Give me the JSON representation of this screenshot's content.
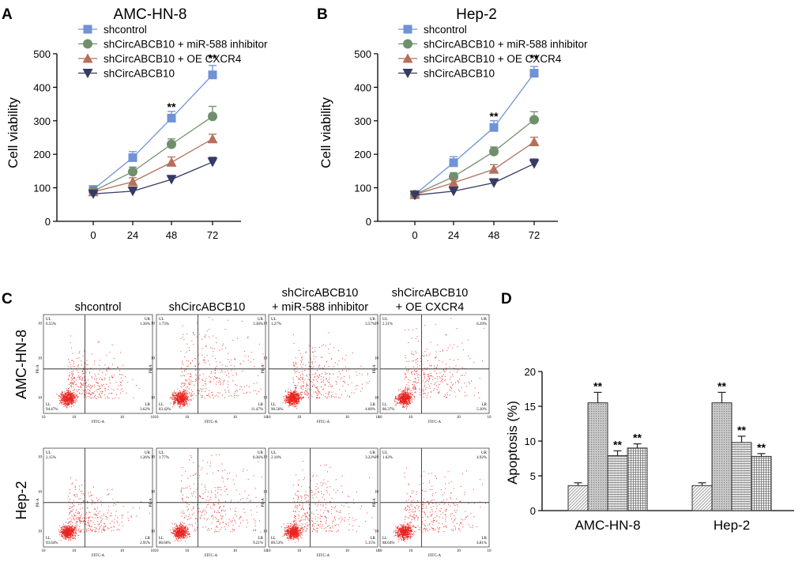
{
  "colors": {
    "shcontrol": "#7092d6",
    "inhibitor": "#6f8f6d",
    "oe": "#b5705c",
    "shCirc": "#363b63",
    "dots": "#e8221d"
  },
  "line_legend": [
    {
      "key": "shcontrol",
      "label": "shcontrol",
      "marker": "square-marker-icon"
    },
    {
      "key": "inhibitor",
      "label": "shCircABCB10 + miR-588 inhibitor",
      "marker": "circle-marker-icon"
    },
    {
      "key": "oe",
      "label": "shCircABCB10 +  OE CXCR4",
      "marker": "triangle-marker-icon"
    },
    {
      "key": "shCirc",
      "label": "shCircABCB10",
      "marker": "down-triangle-marker-icon"
    }
  ],
  "flow": {
    "columns": [
      "shcontrol",
      "shCircABCB10",
      "shCircABCB10",
      "+ miR-588 inhibitor",
      "shCircABCB10",
      "+ OE CXCR4"
    ],
    "rows": [
      "AMC-HN-8",
      "Hep-2"
    ],
    "axis_x": "FITC-A",
    "axis_y": "PE-A",
    "quad_labels": [
      "UL",
      "UR",
      "LL",
      "LR"
    ],
    "percents": [
      [
        "0.55%",
        "1.36%",
        "94.47%",
        "3.62%"
      ],
      [
        "1.73%",
        "3.38%",
        "83.42%",
        "11.47%"
      ],
      [
        "1.27%",
        "3.57%",
        "90.56%",
        "4.60%"
      ],
      [
        "2.31%",
        "6.29%",
        "86.37%",
        "5.30%"
      ],
      [
        "2.15%",
        "1.26%",
        "93.64%",
        "2.95%"
      ],
      [
        "1.77%",
        "8.36%",
        "80.66%",
        "9.21%"
      ],
      [
        "2.10%",
        "3.22%",
        "89.53%",
        "5.15%"
      ],
      [
        "1.63%",
        "4.92%",
        "88.64%",
        "4.81%"
      ]
    ],
    "tick": "10"
  },
  "chart_data": [
    {
      "panel": "A",
      "type": "line",
      "title": "AMC-HN-8",
      "xlabel": "",
      "ylabel": "Cell viability",
      "x": [
        0,
        24,
        48,
        72
      ],
      "ylim": [
        0,
        500
      ],
      "yticks": [
        0,
        100,
        200,
        300,
        400,
        500
      ],
      "series": [
        {
          "name": "shcontrol",
          "key": "shcontrol",
          "marker": "square",
          "values": [
            95,
            190,
            308,
            437
          ],
          "errors": [
            8,
            18,
            20,
            28
          ]
        },
        {
          "name": "shCircABCB10 + miR-588 inhibitor",
          "key": "inhibitor",
          "marker": "circle",
          "values": [
            90,
            148,
            230,
            313
          ],
          "errors": [
            6,
            14,
            16,
            30
          ]
        },
        {
          "name": "shCircABCB10 +  OE CXCR4",
          "key": "oe",
          "marker": "triangle",
          "values": [
            88,
            118,
            176,
            246
          ],
          "errors": [
            6,
            12,
            16,
            14
          ]
        },
        {
          "name": "shCircABCB10",
          "key": "shCirc",
          "marker": "down-triangle",
          "values": [
            82,
            90,
            125,
            177
          ],
          "errors": [
            5,
            12,
            12,
            14
          ]
        }
      ],
      "annotations": [
        {
          "x": 48,
          "y": 330,
          "text": "**"
        },
        {
          "x": 72,
          "y": 475,
          "text": "**"
        }
      ]
    },
    {
      "panel": "B",
      "type": "line",
      "title": "Hep-2",
      "xlabel": "",
      "ylabel": "Cell viability",
      "x": [
        0,
        24,
        48,
        72
      ],
      "ylim": [
        0,
        500
      ],
      "yticks": [
        0,
        100,
        200,
        300,
        400,
        500
      ],
      "series": [
        {
          "name": "shcontrol",
          "key": "shcontrol",
          "marker": "square",
          "values": [
            80,
            175,
            280,
            442
          ],
          "errors": [
            6,
            18,
            20,
            20
          ]
        },
        {
          "name": "shCircABCB10 + miR-588 inhibitor",
          "key": "inhibitor",
          "marker": "circle",
          "values": [
            80,
            133,
            208,
            303
          ],
          "errors": [
            5,
            12,
            14,
            24
          ]
        },
        {
          "name": "shCircABCB10 +  OE CXCR4",
          "key": "oe",
          "marker": "triangle",
          "values": [
            80,
            115,
            155,
            237
          ],
          "errors": [
            5,
            10,
            14,
            14
          ]
        },
        {
          "name": "shCircABCB10",
          "key": "shCirc",
          "marker": "down-triangle",
          "values": [
            78,
            90,
            115,
            172
          ],
          "errors": [
            4,
            12,
            12,
            14
          ]
        }
      ],
      "annotations": [
        {
          "x": 48,
          "y": 302,
          "text": "**"
        },
        {
          "x": 72,
          "y": 475,
          "text": "**"
        }
      ]
    },
    {
      "panel": "D",
      "type": "bar",
      "title": "",
      "xlabel": "",
      "ylabel": "Apoptosis (%)",
      "categories": [
        "AMC-HN-8",
        "Hep-2"
      ],
      "ylim": [
        0,
        20
      ],
      "yticks": [
        0,
        5,
        10,
        15,
        20
      ],
      "series": [
        {
          "name": "shcontrol",
          "pattern": "diag",
          "values": [
            3.6,
            3.6
          ],
          "errors": [
            0.4,
            0.4
          ],
          "sig": [
            "",
            ""
          ]
        },
        {
          "name": "shCircABCB10",
          "pattern": "dots",
          "values": [
            15.5,
            15.5
          ],
          "errors": [
            1.5,
            1.5
          ],
          "sig": [
            "**",
            "**"
          ]
        },
        {
          "name": "shCircABCB10 + miR-588 inhibitor",
          "pattern": "hlines",
          "values": [
            7.9,
            9.8
          ],
          "errors": [
            0.7,
            0.9
          ],
          "sig": [
            "**",
            "**"
          ]
        },
        {
          "name": "shCircABCB10 + OE CXCR4",
          "pattern": "grid",
          "values": [
            9.0,
            7.8
          ],
          "errors": [
            0.6,
            0.4
          ],
          "sig": [
            "**",
            "**"
          ]
        }
      ]
    }
  ]
}
